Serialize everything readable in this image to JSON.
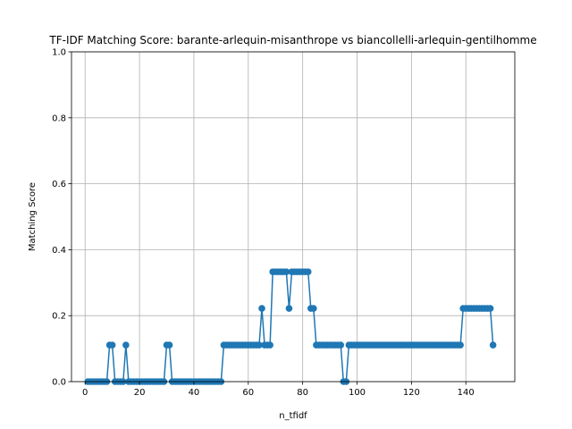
{
  "chart_data": {
    "type": "line",
    "title": "TF-IDF Matching Score: barante-arlequin-misanthrope vs biancollelli-arlequin-gentilhomme",
    "xlabel": "n_tfidf",
    "ylabel": "Matching Score",
    "xlim": [
      -5,
      158
    ],
    "ylim": [
      0,
      1
    ],
    "xticks": [
      0,
      20,
      40,
      60,
      80,
      100,
      120,
      140
    ],
    "yticks": [
      0.0,
      0.2,
      0.4,
      0.6,
      0.8,
      1.0
    ],
    "grid": true,
    "color": "#1f77b4",
    "marker": "circle",
    "series": [
      {
        "x": [
          1,
          2,
          3,
          4,
          5,
          6,
          7,
          8,
          9,
          10,
          11,
          12,
          13,
          14,
          15,
          16,
          17,
          18,
          19,
          20,
          21,
          22,
          23,
          24,
          25,
          26,
          27,
          28,
          29,
          30,
          31,
          32,
          33,
          34,
          35,
          36,
          37,
          38,
          39,
          40,
          41,
          42,
          43,
          44,
          45,
          46,
          47,
          48,
          49,
          50,
          51,
          52,
          53,
          54,
          55,
          56,
          57,
          58,
          59,
          60,
          61,
          62,
          63,
          64,
          65,
          66,
          67,
          68,
          69,
          70,
          71,
          72,
          73,
          74,
          75,
          76,
          77,
          78,
          79,
          80,
          81,
          82,
          83,
          84,
          85,
          86,
          87,
          88,
          89,
          90,
          91,
          92,
          93,
          94,
          95,
          96,
          97,
          98,
          99,
          100,
          101,
          102,
          103,
          104,
          105,
          106,
          107,
          108,
          109,
          110,
          111,
          112,
          113,
          114,
          115,
          116,
          117,
          118,
          119,
          120,
          121,
          122,
          123,
          124,
          125,
          126,
          127,
          128,
          129,
          130,
          131,
          132,
          133,
          134,
          135,
          136,
          137,
          138,
          139,
          140,
          141,
          142,
          143,
          144,
          145,
          146,
          147,
          148,
          149,
          150
        ],
        "y": [
          0,
          0,
          0,
          0,
          0,
          0,
          0,
          0,
          0.111,
          0.111,
          0,
          0,
          0,
          0,
          0.111,
          0,
          0,
          0,
          0,
          0,
          0,
          0,
          0,
          0,
          0,
          0,
          0,
          0,
          0,
          0.111,
          0.111,
          0,
          0,
          0,
          0,
          0,
          0,
          0,
          0,
          0,
          0,
          0,
          0,
          0,
          0,
          0,
          0,
          0,
          0,
          0,
          0.111,
          0.111,
          0.111,
          0.111,
          0.111,
          0.111,
          0.111,
          0.111,
          0.111,
          0.111,
          0.111,
          0.111,
          0.111,
          0.111,
          0.222,
          0.111,
          0.111,
          0.111,
          0.333,
          0.333,
          0.333,
          0.333,
          0.333,
          0.333,
          0.222,
          0.333,
          0.333,
          0.333,
          0.333,
          0.333,
          0.333,
          0.333,
          0.222,
          0.222,
          0.111,
          0.111,
          0.111,
          0.111,
          0.111,
          0.111,
          0.111,
          0.111,
          0.111,
          0.111,
          0,
          0,
          0.111,
          0.111,
          0.111,
          0.111,
          0.111,
          0.111,
          0.111,
          0.111,
          0.111,
          0.111,
          0.111,
          0.111,
          0.111,
          0.111,
          0.111,
          0.111,
          0.111,
          0.111,
          0.111,
          0.111,
          0.111,
          0.111,
          0.111,
          0.111,
          0.111,
          0.111,
          0.111,
          0.111,
          0.111,
          0.111,
          0.111,
          0.111,
          0.111,
          0.111,
          0.111,
          0.111,
          0.111,
          0.111,
          0.111,
          0.111,
          0.111,
          0.111,
          0.222,
          0.222,
          0.222,
          0.222,
          0.222,
          0.222,
          0.222,
          0.222,
          0.222,
          0.222,
          0.222,
          0.111
        ]
      }
    ]
  }
}
